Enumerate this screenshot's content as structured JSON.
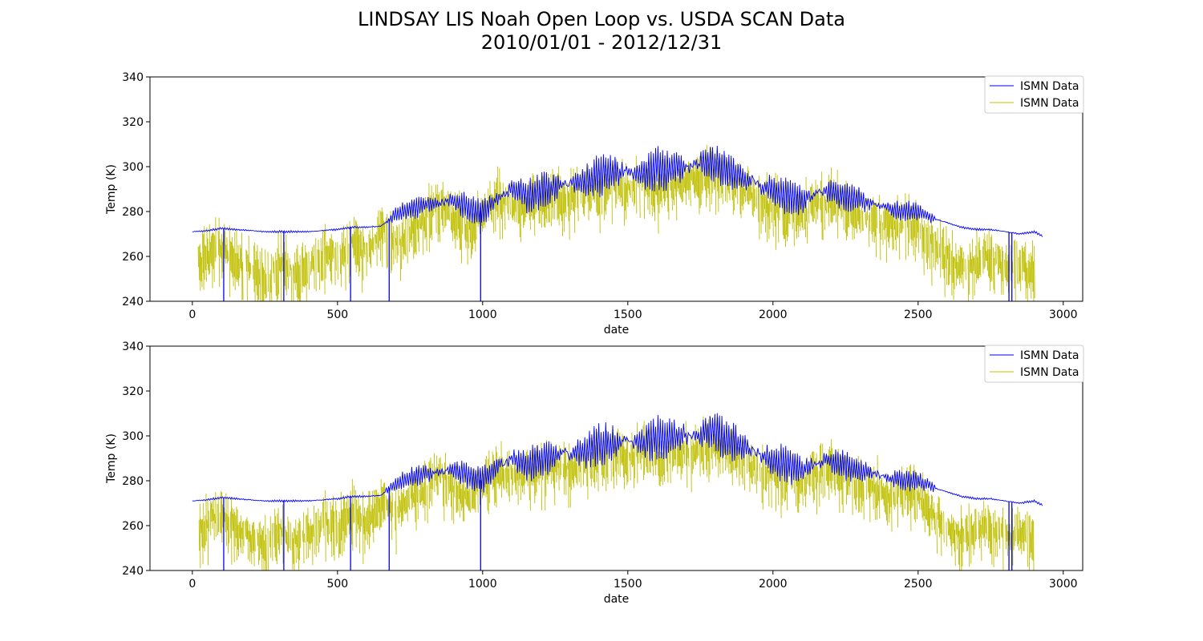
{
  "figure": {
    "title_line1": "LINDSAY LIS Noah Open Loop vs. USDA SCAN Data",
    "title_line2": "2010/01/01 - 2012/12/31"
  },
  "colors": {
    "blue_series": "#0000ff",
    "yellow_series": "#bfbf00",
    "axes": "#000000"
  },
  "chart_data": [
    {
      "type": "line",
      "xlabel": "date",
      "ylabel": "Temp (K)",
      "xlim": [
        -146,
        3067
      ],
      "ylim": [
        240,
        340
      ],
      "xticks": [
        0,
        500,
        1000,
        1500,
        2000,
        2500,
        3000
      ],
      "yticks": [
        240,
        260,
        280,
        300,
        320,
        340
      ],
      "grid": false,
      "legend_position": "top-right",
      "series": [
        {
          "name": "ISMN Data",
          "color": "#0000ff",
          "points": [
            [
              0,
              271
            ],
            [
              50,
              271.5
            ],
            [
              100,
              272.5
            ],
            [
              150,
              272
            ],
            [
              200,
              271.5
            ],
            [
              250,
              271
            ],
            [
              300,
              271
            ],
            [
              350,
              271
            ],
            [
              400,
              271
            ],
            [
              450,
              271.5
            ],
            [
              500,
              272
            ],
            [
              550,
              273
            ],
            [
              600,
              273
            ],
            [
              650,
              273.5
            ],
            [
              700,
              279
            ],
            [
              750,
              281
            ],
            [
              800,
              283
            ],
            [
              850,
              284
            ],
            [
              900,
              285
            ],
            [
              950,
              282
            ],
            [
              1000,
              280
            ],
            [
              1050,
              286
            ],
            [
              1100,
              290
            ],
            [
              1150,
              287
            ],
            [
              1200,
              289
            ],
            [
              1250,
              291
            ],
            [
              1300,
              292
            ],
            [
              1350,
              293
            ],
            [
              1400,
              296
            ],
            [
              1450,
              297
            ],
            [
              1500,
              298
            ],
            [
              1550,
              296
            ],
            [
              1600,
              299
            ],
            [
              1650,
              299
            ],
            [
              1700,
              300
            ],
            [
              1750,
              301
            ],
            [
              1800,
              301
            ],
            [
              1850,
              298
            ],
            [
              1900,
              295
            ],
            [
              1950,
              292
            ],
            [
              2000,
              289
            ],
            [
              2050,
              287
            ],
            [
              2100,
              285
            ],
            [
              2150,
              288
            ],
            [
              2200,
              289
            ],
            [
              2250,
              287
            ],
            [
              2300,
              285
            ],
            [
              2350,
              283
            ],
            [
              2400,
              281
            ],
            [
              2450,
              280
            ],
            [
              2500,
              280
            ],
            [
              2550,
              277
            ],
            [
              2600,
              275
            ],
            [
              2650,
              273
            ],
            [
              2700,
              272
            ],
            [
              2750,
              272
            ],
            [
              2800,
              271
            ],
            [
              2850,
              270
            ],
            [
              2900,
              271
            ],
            [
              2930,
              269
            ]
          ],
          "dropouts": [
            108,
            315,
            545,
            678,
            993,
            2813,
            2823
          ]
        },
        {
          "name": "ISMN Data",
          "color": "#bfbf00",
          "points": [
            [
              20,
              260
            ],
            [
              80,
              268
            ],
            [
              140,
              263
            ],
            [
              200,
              258
            ],
            [
              260,
              253
            ],
            [
              300,
              262
            ],
            [
              350,
              256
            ],
            [
              400,
              258
            ],
            [
              450,
              265
            ],
            [
              500,
              262
            ],
            [
              550,
              270
            ],
            [
              600,
              264
            ],
            [
              650,
              275
            ],
            [
              700,
              268
            ],
            [
              750,
              276
            ],
            [
              800,
              279
            ],
            [
              850,
              288
            ],
            [
              900,
              280
            ],
            [
              950,
              276
            ],
            [
              1000,
              282
            ],
            [
              1050,
              290
            ],
            [
              1100,
              285
            ],
            [
              1150,
              286
            ],
            [
              1200,
              288
            ],
            [
              1250,
              290
            ],
            [
              1300,
              289
            ],
            [
              1350,
              291
            ],
            [
              1400,
              293
            ],
            [
              1450,
              295
            ],
            [
              1500,
              294
            ],
            [
              1550,
              297
            ],
            [
              1600,
              292
            ],
            [
              1650,
              295
            ],
            [
              1700,
              297
            ],
            [
              1750,
              298
            ],
            [
              1800,
              299
            ],
            [
              1850,
              296
            ],
            [
              1900,
              292
            ],
            [
              1950,
              288
            ],
            [
              2000,
              286
            ],
            [
              2050,
              284
            ],
            [
              2100,
              282
            ],
            [
              2150,
              287
            ],
            [
              2200,
              288
            ],
            [
              2250,
              285
            ],
            [
              2300,
              282
            ],
            [
              2350,
              280
            ],
            [
              2400,
              276
            ],
            [
              2450,
              278
            ],
            [
              2500,
              276
            ],
            [
              2550,
              268
            ],
            [
              2600,
              262
            ],
            [
              2650,
              258
            ],
            [
              2700,
              262
            ],
            [
              2750,
              263
            ],
            [
              2800,
              258
            ],
            [
              2850,
              260
            ],
            [
              2900,
              256
            ]
          ]
        }
      ]
    },
    {
      "type": "line",
      "xlabel": "date",
      "ylabel": "Temp (K)",
      "xlim": [
        -146,
        3067
      ],
      "ylim": [
        240,
        340
      ],
      "xticks": [
        0,
        500,
        1000,
        1500,
        2000,
        2500,
        3000
      ],
      "yticks": [
        240,
        260,
        280,
        300,
        320,
        340
      ],
      "grid": false,
      "legend_position": "top-right",
      "series": [
        {
          "name": "ISMN Data",
          "color": "#0000ff",
          "points": [
            [
              0,
              271
            ],
            [
              50,
              271.5
            ],
            [
              100,
              272.5
            ],
            [
              150,
              272
            ],
            [
              200,
              271.5
            ],
            [
              250,
              271
            ],
            [
              300,
              271
            ],
            [
              350,
              271
            ],
            [
              400,
              271
            ],
            [
              450,
              271.5
            ],
            [
              500,
              272
            ],
            [
              550,
              273
            ],
            [
              600,
              273
            ],
            [
              650,
              273.5
            ],
            [
              700,
              279
            ],
            [
              750,
              281
            ],
            [
              800,
              283
            ],
            [
              850,
              284
            ],
            [
              900,
              285
            ],
            [
              950,
              282
            ],
            [
              1000,
              280
            ],
            [
              1050,
              286
            ],
            [
              1100,
              290
            ],
            [
              1150,
              287
            ],
            [
              1200,
              289
            ],
            [
              1250,
              291
            ],
            [
              1300,
              292
            ],
            [
              1350,
              293
            ],
            [
              1400,
              296
            ],
            [
              1450,
              297
            ],
            [
              1500,
              298
            ],
            [
              1550,
              296
            ],
            [
              1600,
              299
            ],
            [
              1650,
              299
            ],
            [
              1700,
              300
            ],
            [
              1750,
              301
            ],
            [
              1800,
              301
            ],
            [
              1850,
              298
            ],
            [
              1900,
              295
            ],
            [
              1950,
              292
            ],
            [
              2000,
              289
            ],
            [
              2050,
              287
            ],
            [
              2100,
              285
            ],
            [
              2150,
              288
            ],
            [
              2200,
              289
            ],
            [
              2250,
              287
            ],
            [
              2300,
              285
            ],
            [
              2350,
              283
            ],
            [
              2400,
              281
            ],
            [
              2450,
              280
            ],
            [
              2500,
              280
            ],
            [
              2550,
              277
            ],
            [
              2600,
              275
            ],
            [
              2650,
              273
            ],
            [
              2700,
              272
            ],
            [
              2750,
              272
            ],
            [
              2800,
              271
            ],
            [
              2850,
              270
            ],
            [
              2900,
              271
            ],
            [
              2930,
              269
            ]
          ],
          "dropouts": [
            108,
            315,
            545,
            678,
            993,
            2813,
            2823
          ]
        },
        {
          "name": "ISMN Data",
          "color": "#bfbf00",
          "points": [
            [
              20,
              260
            ],
            [
              80,
              268
            ],
            [
              140,
              263
            ],
            [
              200,
              258
            ],
            [
              260,
              253
            ],
            [
              300,
              262
            ],
            [
              350,
              256
            ],
            [
              400,
              258
            ],
            [
              450,
              265
            ],
            [
              500,
              262
            ],
            [
              550,
              270
            ],
            [
              600,
              264
            ],
            [
              650,
              275
            ],
            [
              700,
              268
            ],
            [
              750,
              276
            ],
            [
              800,
              279
            ],
            [
              850,
              288
            ],
            [
              900,
              280
            ],
            [
              950,
              276
            ],
            [
              1000,
              282
            ],
            [
              1050,
              290
            ],
            [
              1100,
              285
            ],
            [
              1150,
              286
            ],
            [
              1200,
              288
            ],
            [
              1250,
              290
            ],
            [
              1300,
              289
            ],
            [
              1350,
              291
            ],
            [
              1400,
              293
            ],
            [
              1450,
              295
            ],
            [
              1500,
              294
            ],
            [
              1550,
              297
            ],
            [
              1600,
              292
            ],
            [
              1650,
              295
            ],
            [
              1700,
              297
            ],
            [
              1750,
              298
            ],
            [
              1800,
              299
            ],
            [
              1850,
              296
            ],
            [
              1900,
              292
            ],
            [
              1950,
              288
            ],
            [
              2000,
              286
            ],
            [
              2050,
              284
            ],
            [
              2100,
              282
            ],
            [
              2150,
              287
            ],
            [
              2200,
              288
            ],
            [
              2250,
              285
            ],
            [
              2300,
              282
            ],
            [
              2350,
              280
            ],
            [
              2400,
              276
            ],
            [
              2450,
              278
            ],
            [
              2500,
              276
            ],
            [
              2550,
              268
            ],
            [
              2600,
              262
            ],
            [
              2650,
              258
            ],
            [
              2700,
              262
            ],
            [
              2750,
              263
            ],
            [
              2800,
              258
            ],
            [
              2850,
              260
            ],
            [
              2900,
              256
            ]
          ]
        }
      ]
    }
  ]
}
